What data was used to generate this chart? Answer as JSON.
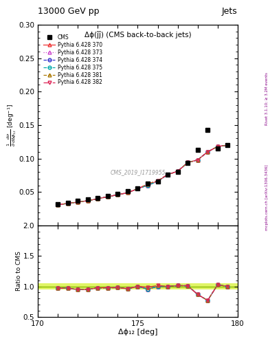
{
  "title": "13000 GeV pp",
  "top_right_label": "Jets",
  "plot_title": "Δϕ(ĵĵ) (CMS back-to-back jets)",
  "cms_label": "CMS_2019_I1719955",
  "right_label_top": "Rivet 3.1.10; ≥ 3.2M events",
  "right_label_bottom": "mcplots.cern.ch [arXiv:1306.3436]",
  "xlabel": "Δϕ₁₂ [deg]",
  "ylabel": "$\\frac{1}{\\bar{\\sigma}}\\frac{d\\sigma}{d\\Delta\\phi_{12}}$ [deg$^{-1}$]",
  "ylabel_ratio": "Ratio to CMS",
  "xlim": [
    170,
    180
  ],
  "ylim_main": [
    0.0,
    0.3
  ],
  "ylim_ratio": [
    0.5,
    2.0
  ],
  "xticks": [
    170,
    171,
    172,
    173,
    174,
    175,
    176,
    177,
    178,
    179,
    180
  ],
  "yticks_main": [
    0.05,
    0.1,
    0.15,
    0.2,
    0.25,
    0.3
  ],
  "yticks_ratio": [
    0.5,
    1.0,
    1.5,
    2.0
  ],
  "cms_x": [
    171.0,
    171.5,
    172.0,
    172.5,
    173.0,
    173.5,
    174.0,
    174.5,
    175.0,
    175.5,
    176.0,
    176.5,
    177.0,
    177.5,
    178.0,
    178.5,
    179.0,
    179.5
  ],
  "cms_y": [
    0.032,
    0.034,
    0.037,
    0.039,
    0.041,
    0.044,
    0.047,
    0.051,
    0.055,
    0.063,
    0.066,
    0.076,
    0.08,
    0.093,
    0.113,
    0.143,
    0.115,
    0.12
  ],
  "mc_x": [
    171.0,
    171.5,
    172.0,
    172.5,
    173.0,
    173.5,
    174.0,
    174.5,
    175.0,
    175.5,
    176.0,
    176.5,
    177.0,
    177.5,
    178.0,
    178.5,
    179.0,
    179.5
  ],
  "pythia_370": [
    0.031,
    0.033,
    0.035,
    0.037,
    0.04,
    0.043,
    0.046,
    0.049,
    0.055,
    0.06,
    0.066,
    0.076,
    0.081,
    0.094,
    0.098,
    0.11,
    0.118,
    0.12
  ],
  "pythia_373": [
    0.031,
    0.033,
    0.035,
    0.037,
    0.04,
    0.043,
    0.046,
    0.049,
    0.055,
    0.06,
    0.066,
    0.076,
    0.081,
    0.094,
    0.098,
    0.11,
    0.118,
    0.12
  ],
  "pythia_374": [
    0.031,
    0.033,
    0.035,
    0.037,
    0.04,
    0.043,
    0.046,
    0.049,
    0.055,
    0.06,
    0.066,
    0.076,
    0.081,
    0.094,
    0.098,
    0.11,
    0.118,
    0.12
  ],
  "pythia_375": [
    0.031,
    0.033,
    0.035,
    0.037,
    0.04,
    0.043,
    0.046,
    0.049,
    0.055,
    0.06,
    0.066,
    0.076,
    0.081,
    0.094,
    0.098,
    0.11,
    0.118,
    0.12
  ],
  "pythia_381": [
    0.031,
    0.033,
    0.035,
    0.037,
    0.04,
    0.043,
    0.046,
    0.049,
    0.055,
    0.062,
    0.067,
    0.076,
    0.081,
    0.094,
    0.098,
    0.11,
    0.118,
    0.12
  ],
  "pythia_382": [
    0.031,
    0.033,
    0.035,
    0.037,
    0.04,
    0.043,
    0.046,
    0.049,
    0.055,
    0.062,
    0.067,
    0.076,
    0.081,
    0.094,
    0.098,
    0.11,
    0.118,
    0.12
  ],
  "mc_styles": {
    "370": {
      "color": "#ee3333",
      "linestyle": "-",
      "marker": "^",
      "markerfacecolor": "none",
      "label": "Pythia 6.428 370"
    },
    "373": {
      "color": "#cc44cc",
      "linestyle": ":",
      "marker": "^",
      "markerfacecolor": "none",
      "label": "Pythia 6.428 373"
    },
    "374": {
      "color": "#3333cc",
      "linestyle": "--",
      "marker": "o",
      "markerfacecolor": "none",
      "label": "Pythia 6.428 374"
    },
    "375": {
      "color": "#00aaaa",
      "linestyle": "--",
      "marker": "o",
      "markerfacecolor": "none",
      "label": "Pythia 6.428 375"
    },
    "381": {
      "color": "#aa7700",
      "linestyle": "--",
      "marker": "^",
      "markerfacecolor": "none",
      "label": "Pythia 6.428 381"
    },
    "382": {
      "color": "#dd2255",
      "linestyle": "-.",
      "marker": "v",
      "markerfacecolor": "none",
      "label": "Pythia 6.428 382"
    }
  },
  "ratio_band_color": "#ccee00",
  "ratio_band_alpha": 0.6,
  "ratio_line_color": "#88bb00"
}
